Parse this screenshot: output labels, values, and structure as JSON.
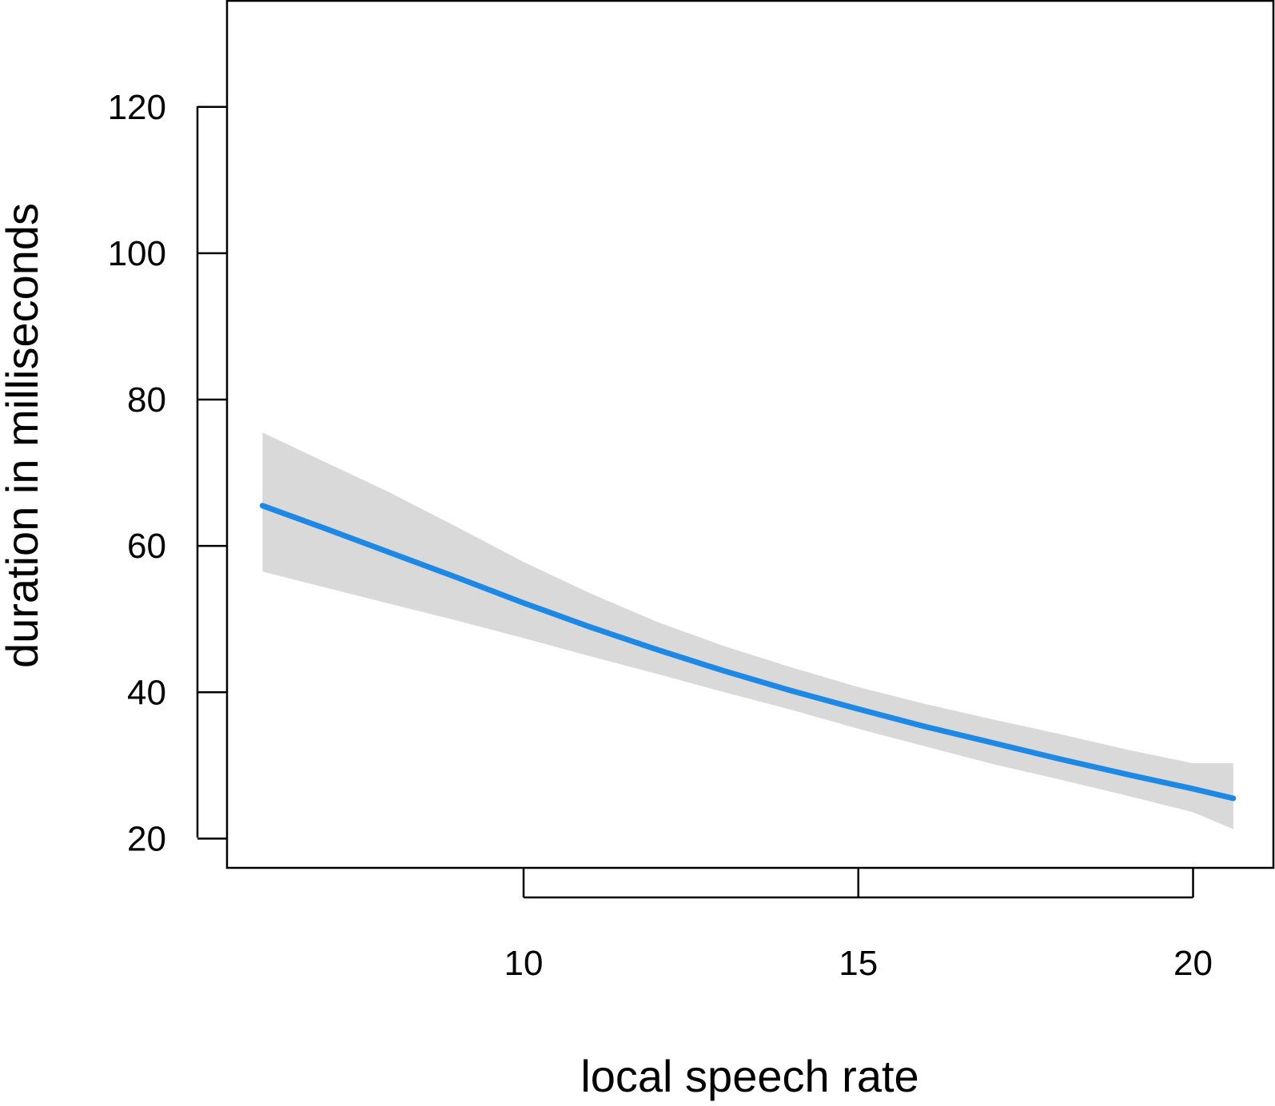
{
  "chart_data": {
    "type": "line",
    "title": "",
    "xlabel": "local speech rate",
    "ylabel": "duration in milliseconds",
    "xlim": [
      5.57,
      21.2
    ],
    "ylim": [
      16,
      134.5
    ],
    "xticks": [
      10,
      15,
      20
    ],
    "yticks": [
      20,
      40,
      60,
      80,
      100,
      120
    ],
    "grid": false,
    "legend": "none",
    "line_color": "#1E88E5",
    "band_color": "#D9D9D9",
    "series": [
      {
        "x": [
          6.1,
          7,
          8,
          9,
          10,
          11,
          12,
          13,
          14,
          15,
          16,
          17,
          18,
          19,
          20,
          20.6
        ],
        "y": [
          65.5,
          62.5,
          59.1,
          55.7,
          52.2,
          48.9,
          45.8,
          42.9,
          40.2,
          37.7,
          35.3,
          33.1,
          30.9,
          28.8,
          26.8,
          25.5
        ],
        "lower": [
          56.5,
          54.4,
          52.1,
          49.8,
          47.4,
          44.9,
          42.5,
          40.0,
          37.6,
          35.0,
          32.6,
          30.2,
          28.1,
          25.9,
          23.6,
          21.3
        ],
        "upper": [
          75.5,
          71.6,
          67.3,
          62.6,
          57.8,
          53.5,
          49.6,
          46.3,
          43.4,
          40.7,
          38.4,
          36.3,
          34.3,
          32.2,
          30.3,
          30.3
        ]
      }
    ]
  }
}
